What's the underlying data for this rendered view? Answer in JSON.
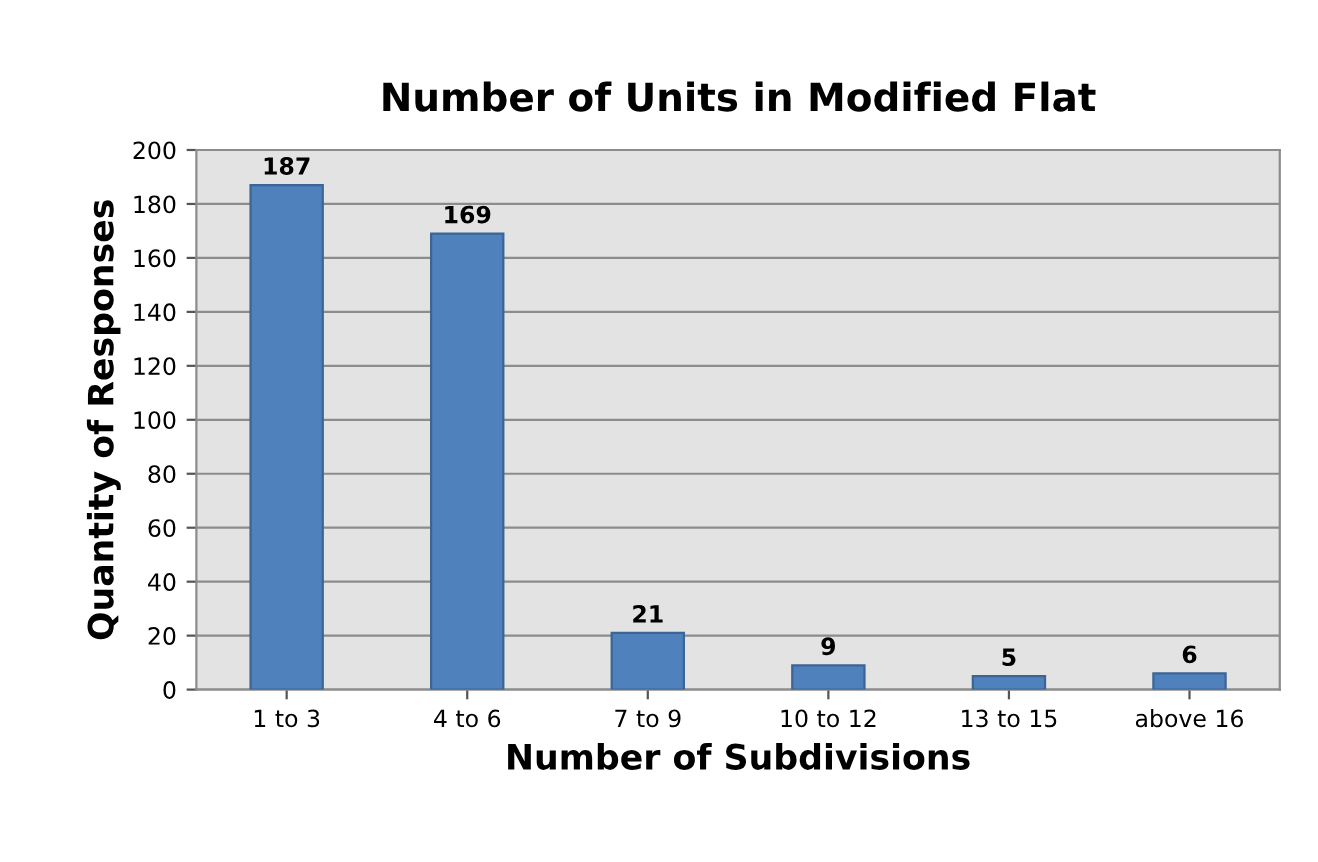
{
  "chart_data": {
    "type": "bar",
    "title": "Number of Units in Modified Flat",
    "xlabel": "Number of Subdivisions",
    "ylabel": "Quantity of Responses",
    "categories": [
      "1 to 3",
      "4 to 6",
      "7 to 9",
      "10 to 12",
      "13 to 15",
      "above 16"
    ],
    "values": [
      187,
      169,
      21,
      9,
      5,
      6
    ],
    "color": "#4f81bd",
    "ylim": [
      0,
      200
    ],
    "yticks": [
      0,
      20,
      40,
      60,
      80,
      100,
      120,
      140,
      160,
      180,
      200
    ],
    "grid": "y",
    "data_labels": true,
    "legend": false
  }
}
